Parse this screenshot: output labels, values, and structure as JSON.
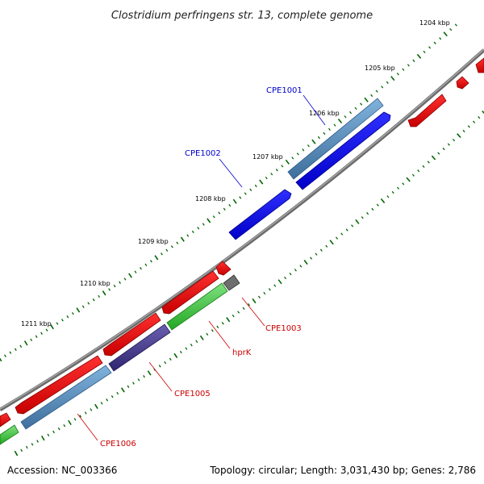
{
  "title": "Clostridium perfringens str. 13, complete genome",
  "footer": {
    "accession": "Accession: NC_003366",
    "summary": "Topology: circular; Length: 3,031,430 bp; Genes: 2,786"
  },
  "kbp_labels": [
    "1204 kbp",
    "1205 kbp",
    "1206 kbp",
    "1207 kbp",
    "1208 kbp",
    "1209 kbp",
    "1210 kbp",
    "1211 kbp"
  ],
  "gene_labels": [
    "CPE1001",
    "CPE1002",
    "CPE1003",
    "hprK",
    "CPE1005",
    "CPE1006"
  ],
  "colors": {
    "backbone": "#777777",
    "forward_cds": "#0000ee",
    "forward_gene": "#4682b4",
    "reverse_cds": "#ee0000",
    "reverse_gene": "#4682b4",
    "rna_like": "#33cc33",
    "other": "#666666",
    "purple": "#483d8b",
    "tick": "#006600"
  }
}
